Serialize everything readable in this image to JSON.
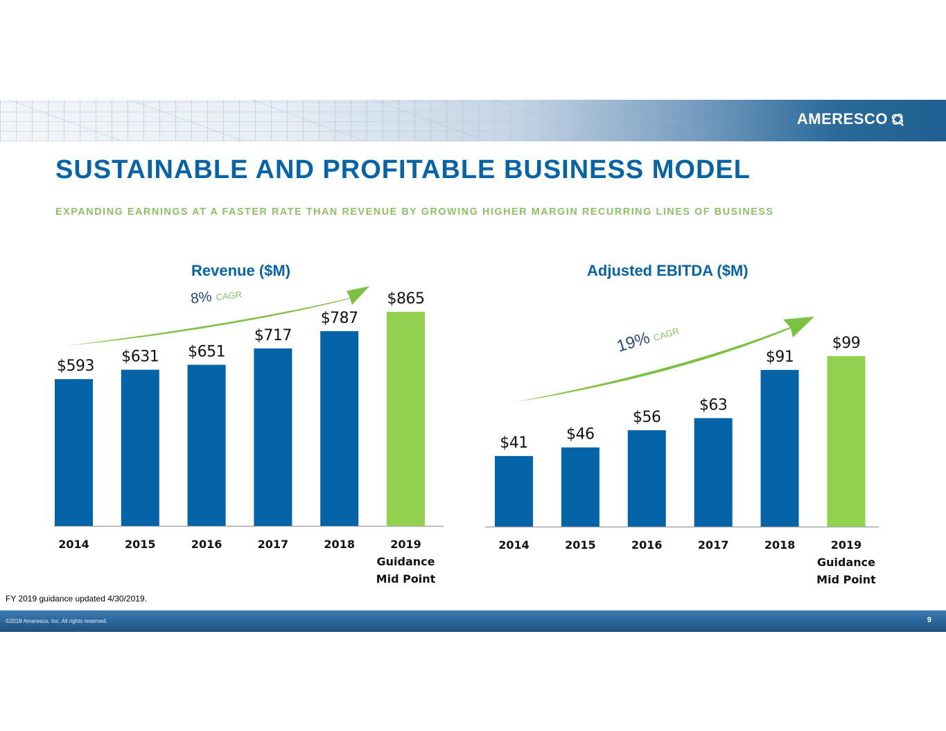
{
  "header": {
    "brand": "AMERESCO",
    "logo_icon": "ameresco-swirl-icon"
  },
  "slide": {
    "title": "SUSTAINABLE AND PROFITABLE BUSINESS MODEL",
    "subtitle": "EXPANDING EARNINGS AT A FASTER RATE THAN REVENUE BY GROWING HIGHER MARGIN RECURRING LINES OF BUSINESS",
    "footnote": "FY 2019 guidance updated 4/30/2019.",
    "copyright": "©2018 Ameresco, Inc. All rights reserved.",
    "page_number": "9"
  },
  "colors": {
    "actual_bar": "#0563a8",
    "guidance_bar": "#92d050",
    "arrow": "#7cc242",
    "title": "#0563a8",
    "subtitle": "#8cc166",
    "cagr_pct": "#274a78",
    "cagr_word": "#8cc166"
  },
  "chart_data": [
    {
      "type": "bar",
      "title": "Revenue ($M)",
      "xlabel": "",
      "ylabel": "",
      "categories": [
        "2014",
        "2015",
        "2016",
        "2017",
        "2018",
        "2019"
      ],
      "category_sublabels": [
        "",
        "",
        "",
        "",
        "",
        "Guidance Mid Point"
      ],
      "category_sublabel_lines": [
        [],
        [],
        [],
        [],
        [],
        [
          "Guidance",
          "Mid Point"
        ]
      ],
      "values": [
        593,
        631,
        651,
        717,
        787,
        865
      ],
      "data_labels": [
        "$593",
        "$631",
        "$651",
        "$717",
        "$787",
        "$865"
      ],
      "bar_kinds": [
        "actual",
        "actual",
        "actual",
        "actual",
        "actual",
        "guidance"
      ],
      "ylim": [
        0,
        865
      ],
      "grid": false,
      "annotation": {
        "cagr_value": "8%",
        "cagr_text": "CAGR"
      }
    },
    {
      "type": "bar",
      "title": "Adjusted EBITDA ($M)",
      "xlabel": "",
      "ylabel": "",
      "categories": [
        "2014",
        "2015",
        "2016",
        "2017",
        "2018",
        "2019"
      ],
      "category_sublabels": [
        "",
        "",
        "",
        "",
        "",
        "Guidance Mid Point"
      ],
      "category_sublabel_lines": [
        [],
        [],
        [],
        [],
        [],
        [
          "Guidance",
          "Mid Point"
        ]
      ],
      "values": [
        41,
        46,
        56,
        63,
        91,
        99
      ],
      "data_labels": [
        "$41",
        "$46",
        "$56",
        "$63",
        "$91",
        "$99"
      ],
      "bar_kinds": [
        "actual",
        "actual",
        "actual",
        "actual",
        "actual",
        "guidance"
      ],
      "ylim": [
        0,
        99
      ],
      "grid": false,
      "annotation": {
        "cagr_value": "19%",
        "cagr_text": "CAGR"
      }
    }
  ]
}
